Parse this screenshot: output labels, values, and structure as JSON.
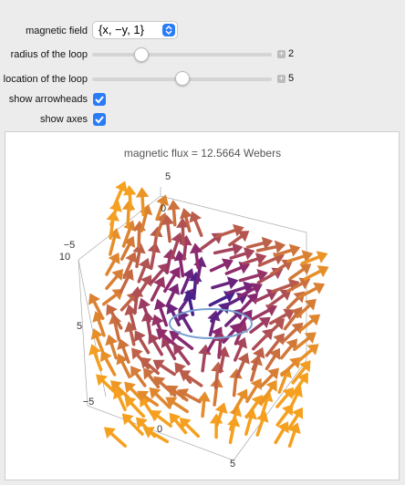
{
  "controls": [
    {
      "label": "magnetic field",
      "value": "{x, −y, 1}"
    },
    {
      "label": "radius of the loop",
      "value": 2
    },
    {
      "label": "location of the loop",
      "value": 5
    },
    {
      "label": "show arrowheads",
      "checked": true
    },
    {
      "label": "show axes",
      "checked": true
    }
  ],
  "plot": {
    "title": "magnetic flux = 12.5664 Webers",
    "axis_labels": [
      "5",
      "0",
      "−5",
      "10",
      "5",
      "−5",
      "0",
      "5"
    ]
  }
}
